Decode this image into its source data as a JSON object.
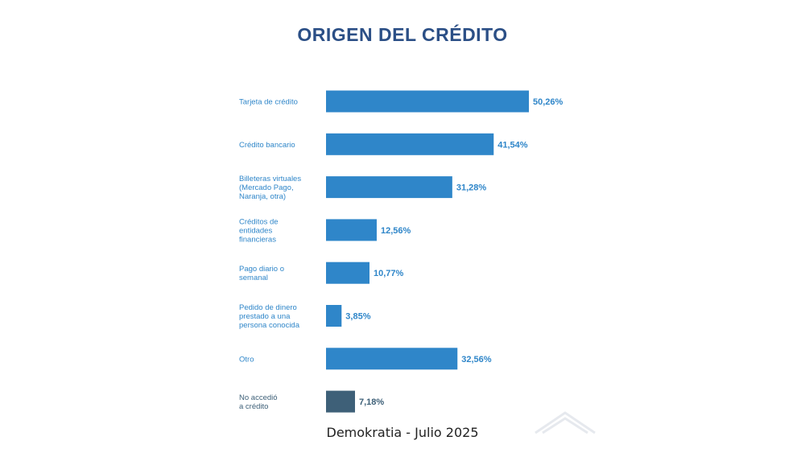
{
  "chart_data": {
    "type": "bar",
    "orientation": "horizontal",
    "title": "ORIGEN DEL CRÉDITO",
    "categories": [
      [
        "Tarjeta de crédito"
      ],
      [
        "Crédito bancario"
      ],
      [
        "Billeteras virtuales",
        "(Mercado Pago,",
        "Naranja, otra)"
      ],
      [
        "Créditos de",
        "entidades",
        "financieras"
      ],
      [
        "Pago diario o",
        "semanal"
      ],
      [
        "Pedido de dinero",
        "prestado a una",
        "persona conocida"
      ],
      [
        "Otro"
      ],
      [
        "No accedió",
        "a crédito"
      ]
    ],
    "values": [
      50.26,
      41.54,
      31.28,
      12.56,
      10.77,
      3.85,
      32.56,
      7.18
    ],
    "value_labels": [
      "50,26%",
      "41,54%",
      "31,28%",
      "12,56%",
      "10,77%",
      "3,85%",
      "32,56%",
      "7,18%"
    ],
    "xlim": [
      0,
      50.26
    ],
    "xlabel": "",
    "ylabel": "",
    "grid": false,
    "legend": "none"
  },
  "colors": {
    "bar": "#2f86c9",
    "bar_highlight": "#3e6078",
    "title": "#2b4f86",
    "category_text": "#2f86c9",
    "value_text": "#2f86c9",
    "value_text_highlight": "#3e6078"
  },
  "highlight_index": 7,
  "footer": "Demokratia - Julio 2025",
  "watermark_icon": "chevron-up-icon"
}
